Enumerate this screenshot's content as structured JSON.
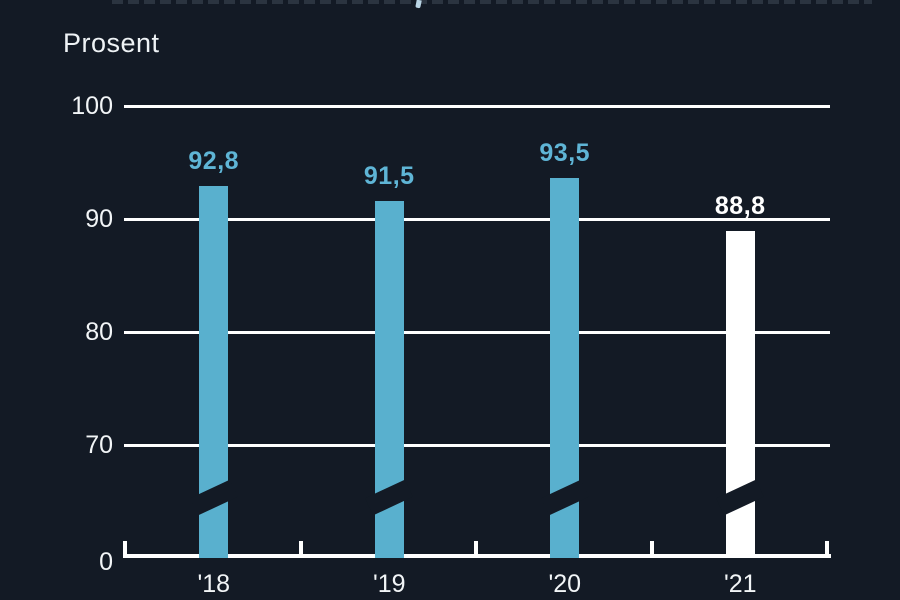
{
  "header": {
    "subtitle": "Prosent",
    "clipped_title_visible": true
  },
  "colors": {
    "background": "#131a25",
    "bar_blue": "#59b0ce",
    "bar_white": "#ffffff",
    "label_blue": "#5fb5d6",
    "label_white": "#ffffff",
    "axis_white": "#ffffff",
    "text_white": "#f2f5f7"
  },
  "chart_data": {
    "type": "bar",
    "categories": [
      "'18",
      "'19",
      "'20",
      "'21"
    ],
    "values": [
      92.8,
      91.5,
      93.5,
      88.8
    ],
    "value_labels": [
      "92,8",
      "91,5",
      "93,5",
      "88,8"
    ],
    "bar_colors": [
      "#59b0ce",
      "#59b0ce",
      "#59b0ce",
      "#ffffff"
    ],
    "value_label_colors": [
      "#5fb5d6",
      "#5fb5d6",
      "#5fb5d6",
      "#ffffff"
    ],
    "title": "",
    "xlabel": "",
    "ylabel": "Prosent",
    "yticks": [
      0,
      70,
      80,
      90,
      100
    ],
    "ylim": [
      0,
      100
    ],
    "axis_break": true,
    "grid": "horizontal gridlines at 70, 80, 90, 100",
    "legend": "none"
  }
}
